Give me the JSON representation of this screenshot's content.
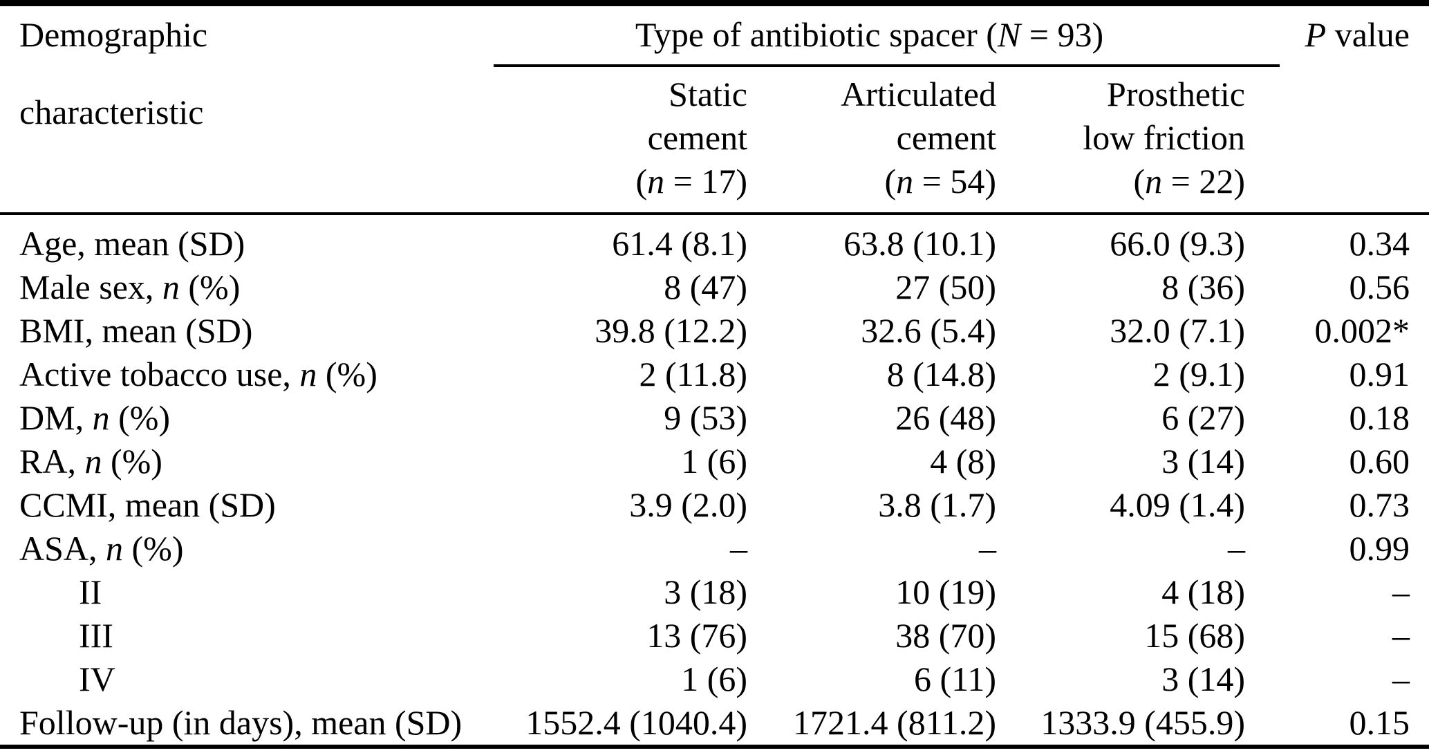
{
  "table": {
    "row_header": {
      "line1": "Demographic",
      "line2": "characteristic"
    },
    "group_header": {
      "pre": "Type of antibiotic spacer (",
      "italic": "N",
      "post": " = 93)"
    },
    "p_header": {
      "italic": "P",
      "post": " value"
    },
    "columns": [
      {
        "line1": "Static",
        "line2": "cement",
        "n_pre": "(",
        "n_italic": "n",
        "n_post": " = 17)"
      },
      {
        "line1": "Articulated",
        "line2": "cement",
        "n_pre": "(",
        "n_italic": "n",
        "n_post": " = 54)"
      },
      {
        "line1": "Prosthetic",
        "line2": "low friction",
        "n_pre": "(",
        "n_italic": "n",
        "n_post": " = 22)"
      }
    ],
    "rows": [
      {
        "label_pre": "Age, mean (SD)",
        "label_italic": "",
        "label_post": "",
        "values": [
          "61.4 (8.1)",
          "63.8 (10.1)",
          "66.0 (9.3)"
        ],
        "p": "0.34"
      },
      {
        "label_pre": "Male sex, ",
        "label_italic": "n",
        "label_post": " (%)",
        "values": [
          "8 (47)",
          "27 (50)",
          "8 (36)"
        ],
        "p": "0.56"
      },
      {
        "label_pre": "BMI, mean (SD)",
        "label_italic": "",
        "label_post": "",
        "values": [
          "39.8 (12.2)",
          "32.6 (5.4)",
          "32.0 (7.1)"
        ],
        "p": "0.002*"
      },
      {
        "label_pre": "Active tobacco use, ",
        "label_italic": "n",
        "label_post": " (%)",
        "values": [
          "2 (11.8)",
          "8 (14.8)",
          "2 (9.1)"
        ],
        "p": "0.91"
      },
      {
        "label_pre": "DM, ",
        "label_italic": "n",
        "label_post": " (%)",
        "values": [
          "9 (53)",
          "26 (48)",
          "6 (27)"
        ],
        "p": "0.18"
      },
      {
        "label_pre": "RA, ",
        "label_italic": "n",
        "label_post": " (%)",
        "values": [
          "1 (6)",
          "4 (8)",
          "3 (14)"
        ],
        "p": "0.60"
      },
      {
        "label_pre": "CCMI, mean (SD)",
        "label_italic": "",
        "label_post": "",
        "values": [
          "3.9 (2.0)",
          "3.8 (1.7)",
          "4.09 (1.4)"
        ],
        "p": "0.73"
      },
      {
        "label_pre": "ASA, ",
        "label_italic": "n",
        "label_post": " (%)",
        "values": [
          "–",
          "–",
          "–"
        ],
        "p": "0.99"
      },
      {
        "label_pre": "II",
        "indent": true,
        "label_italic": "",
        "label_post": "",
        "values": [
          "3 (18)",
          "10 (19)",
          "4 (18)"
        ],
        "p": "–"
      },
      {
        "label_pre": "III",
        "indent": true,
        "label_italic": "",
        "label_post": "",
        "values": [
          "13 (76)",
          "38 (70)",
          "15 (68)"
        ],
        "p": "–"
      },
      {
        "label_pre": "IV",
        "indent": true,
        "label_italic": "",
        "label_post": "",
        "values": [
          "1 (6)",
          "6 (11)",
          "3 (14)"
        ],
        "p": "–"
      },
      {
        "label_pre": "Follow-up (in days), mean (SD)",
        "label_italic": "",
        "label_post": "",
        "values": [
          "1552.4 (1040.4)",
          "1721.4 (811.2)",
          "1333.9 (455.9)"
        ],
        "p": "0.15"
      }
    ]
  }
}
